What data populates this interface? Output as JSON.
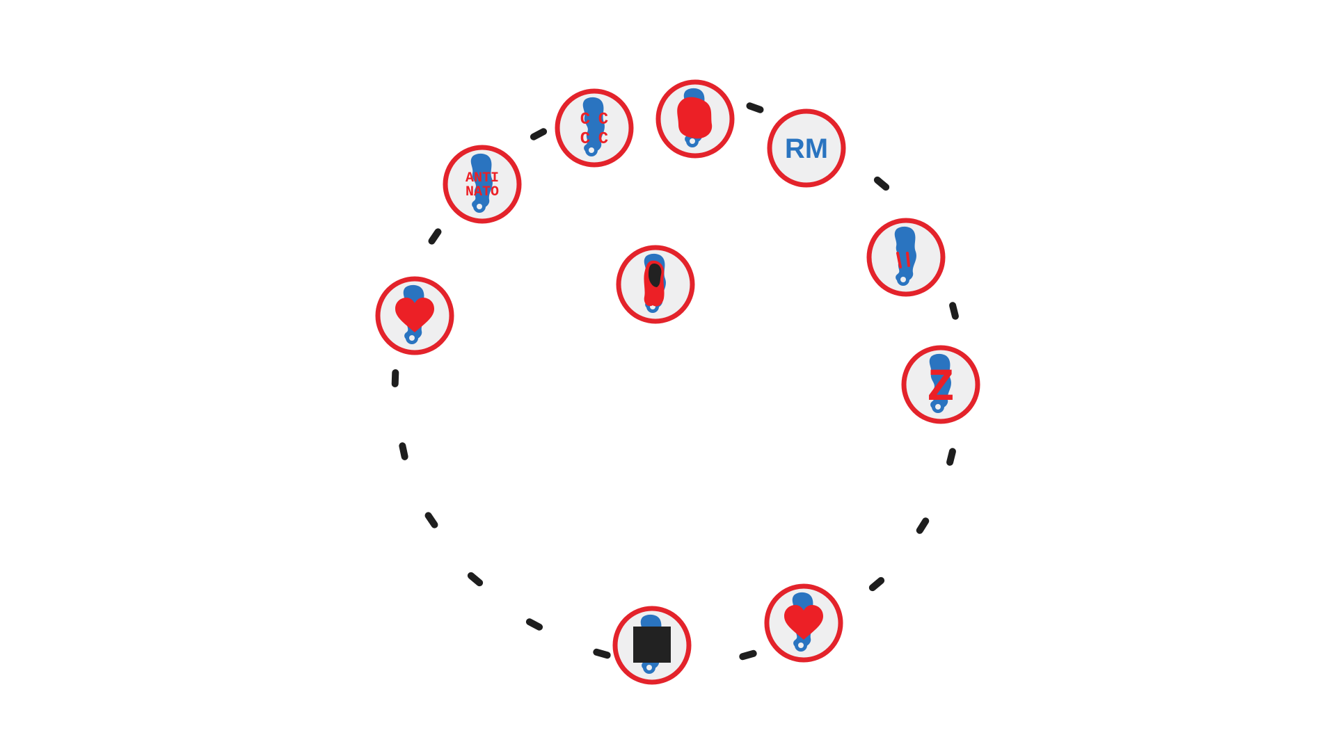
{
  "colors": {
    "ring": "#e3232b",
    "fill": "#efeff0",
    "blue": "#2a74c0",
    "red": "#ec2026",
    "dark": "#222222",
    "dash": "#1e1e1e"
  },
  "badges": {
    "rm": {
      "text": "RM",
      "icon": "rm-text-badge"
    },
    "anti_nato": {
      "line1": "ANTI",
      "line2": "NATO",
      "icon": "anti-nato-badge"
    },
    "cccc": {
      "c1": "C",
      "c2": "C",
      "c3": "C",
      "c4": "C",
      "icon": "cccc-badge"
    },
    "z": {
      "text": "Z",
      "icon": "z-letter-badge"
    },
    "heart_left": {
      "icon": "heart-icon"
    },
    "heart_bottom": {
      "icon": "heart-icon"
    },
    "red_blob": {
      "icon": "red-blob-icon"
    },
    "black_square": {
      "icon": "black-square-icon"
    },
    "teardrop": {
      "icon": "crying-face-icon"
    },
    "center": {
      "icon": "hooded-figure-icon"
    }
  }
}
